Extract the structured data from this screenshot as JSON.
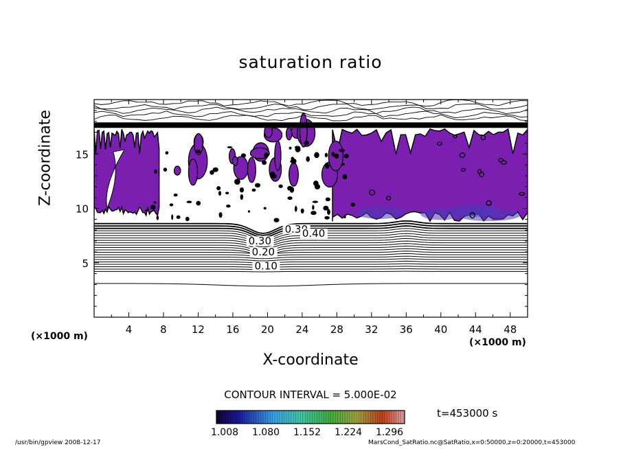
{
  "chart_data": {
    "type": "contour",
    "title": "saturation ratio",
    "xlabel": "X-coordinate",
    "ylabel": "Z-coordinate",
    "x_unit": "(×1000 m)",
    "z_unit": "(×1000 m)",
    "xlim": [
      0,
      50
    ],
    "ylim": [
      0,
      20
    ],
    "x_ticks": [
      "4",
      "8",
      "12",
      "16",
      "20",
      "24",
      "28",
      "32",
      "36",
      "40",
      "44",
      "48"
    ],
    "y_ticks": [
      "5",
      "10",
      "15"
    ],
    "contour_interval": "CONTOUR INTERVAL = 5.000E-02",
    "contour_labels": [
      {
        "text": "0.10",
        "x": 18.5,
        "z": 4.5
      },
      {
        "text": "0.20",
        "x": 18.2,
        "z": 5.8
      },
      {
        "text": "0.30",
        "x": 17.8,
        "z": 6.8
      },
      {
        "text": "0.30",
        "x": 22.0,
        "z": 7.9
      },
      {
        "text": "0.40",
        "x": 24.0,
        "z": 7.5
      }
    ],
    "colorbar_ticks": [
      "1.008",
      "1.080",
      "1.152",
      "1.224",
      "1.296"
    ],
    "colorbar_range": [
      1.008,
      1.296
    ],
    "time": "t=453000 s",
    "shaded_regions_note_color": "#7b1fb0"
  },
  "footer": {
    "left": "/usr/bin/gpview  2008-12-17",
    "right": "MarsCond_SatRatio.nc@SatRatio,x=0:50000,z=0:20000,t=453000"
  },
  "colors": {
    "supersat": "#7b1fb0",
    "line": "#000000"
  }
}
